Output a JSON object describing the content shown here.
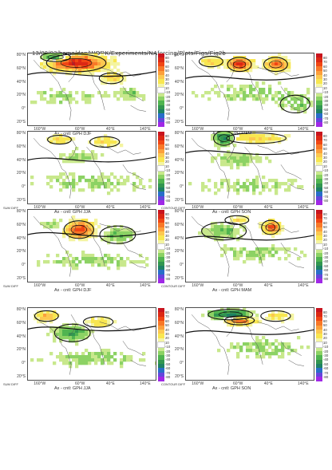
{
  "header": "13/08/03/home/dan/WORK/Experiments/NAforcing/Plots/Figs/Fig2b",
  "axes": {
    "lat_ticks": [
      "80°N",
      "60°N",
      "40°N",
      "20°N",
      "0°",
      "20°S"
    ],
    "lon_ticks": [
      "160°W",
      "60°W",
      "40°E",
      "140°E"
    ]
  },
  "colorbar": {
    "levels": [
      "80",
      "70",
      "60",
      "50",
      "40",
      "30",
      "20",
      "10",
      "-10",
      "-20",
      "-30",
      "-40",
      "-50",
      "-60",
      "-70",
      "-80"
    ],
    "colors": [
      "#c8141e",
      "#dc2814",
      "#f04614",
      "#f87828",
      "#fca03c",
      "#fcc850",
      "#f8e650",
      "#f4f4a0",
      "#ffffff",
      "#c8e88c",
      "#8cd264",
      "#50b450",
      "#329650",
      "#1e8264",
      "#286ec8",
      "#6446dc",
      "#a028e6"
    ]
  },
  "row_labels": {
    "sum_diff": "SUM DIFF",
    "contour_diff": "CONTOUR DIFF"
  },
  "panels": [
    {
      "id": "p1",
      "title": "Ax - cntl: GPH DJF",
      "row_label": ""
    },
    {
      "id": "p2",
      "title": "Ax - cntl: GPH MAM",
      "row_label": ""
    },
    {
      "id": "p3",
      "title": "Ax - cntl: GPH JJA",
      "row_label": "SUM DIFF"
    },
    {
      "id": "p4",
      "title": "Ax - cntl: GPH SON",
      "row_label": "CONTOUR DIFF"
    },
    {
      "id": "p5",
      "title": "Ax - cntl: GPH DJF",
      "row_label": "SUM DIFF"
    },
    {
      "id": "p6",
      "title": "Ax - cntl: GPH MAM",
      "row_label": "CONTOUR DIFF"
    },
    {
      "id": "p7",
      "title": "Ax - cntl: GPH JJA",
      "row_label": "SUM DIFF"
    },
    {
      "id": "p8",
      "title": "Ax - cntl: GPH SON",
      "row_label": "CONTOUR DIFF"
    }
  ],
  "chart_data": [
    {
      "type": "heatmap",
      "title": "Ax - cntl: GPH DJF",
      "variable": "GPH",
      "season": "DJF",
      "xlim": [
        -180,
        180
      ],
      "ylim": [
        -30,
        80
      ],
      "zlim": [
        -80,
        80
      ]
    },
    {
      "type": "heatmap",
      "title": "Ax - cntl: GPH MAM",
      "variable": "GPH",
      "season": "MAM",
      "xlim": [
        -180,
        180
      ],
      "ylim": [
        -30,
        80
      ],
      "zlim": [
        -80,
        80
      ]
    },
    {
      "type": "heatmap",
      "title": "Ax - cntl: GPH JJA",
      "variable": "GPH",
      "season": "JJA",
      "xlim": [
        -180,
        180
      ],
      "ylim": [
        -30,
        80
      ],
      "zlim": [
        -80,
        80
      ]
    },
    {
      "type": "heatmap",
      "title": "Ax - cntl: GPH SON",
      "variable": "GPH",
      "season": "SON",
      "xlim": [
        -180,
        180
      ],
      "ylim": [
        -30,
        80
      ],
      "zlim": [
        -80,
        80
      ]
    },
    {
      "type": "heatmap",
      "title": "Ax - cntl: GPH DJF",
      "variable": "GPH",
      "season": "DJF",
      "xlim": [
        -180,
        180
      ],
      "ylim": [
        -30,
        80
      ],
      "zlim": [
        -80,
        80
      ]
    },
    {
      "type": "heatmap",
      "title": "Ax - cntl: GPH MAM",
      "variable": "GPH",
      "season": "MAM",
      "xlim": [
        -180,
        180
      ],
      "ylim": [
        -30,
        80
      ],
      "zlim": [
        -80,
        80
      ]
    },
    {
      "type": "heatmap",
      "title": "Ax - cntl: GPH JJA",
      "variable": "GPH",
      "season": "JJA",
      "xlim": [
        -180,
        180
      ],
      "ylim": [
        -30,
        80
      ],
      "zlim": [
        -80,
        80
      ]
    },
    {
      "type": "heatmap",
      "title": "Ax - cntl: GPH SON",
      "variable": "GPH",
      "season": "SON",
      "xlim": [
        -180,
        180
      ],
      "ylim": [
        -30,
        80
      ],
      "zlim": [
        -80,
        80
      ]
    }
  ]
}
